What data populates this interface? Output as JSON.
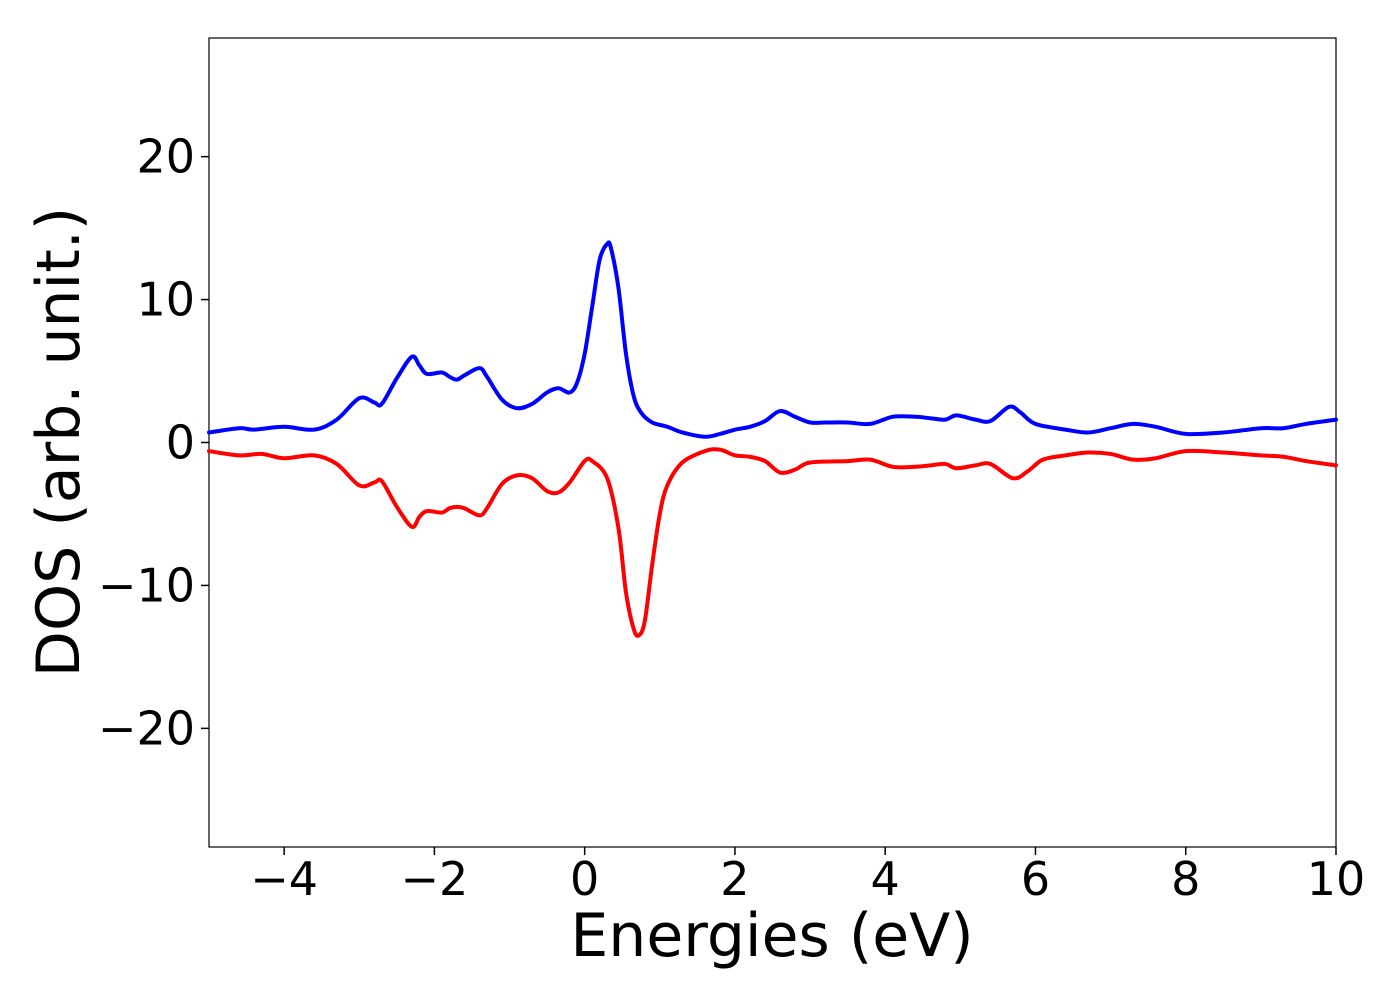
{
  "chart_data": {
    "type": "line",
    "title": "",
    "xlabel": "Energies (eV)",
    "ylabel": "DOS (arb. unit.)",
    "xlim": [
      -5,
      10
    ],
    "ylim": [
      -28.3,
      28.3
    ],
    "xticks": [
      -4,
      -2,
      0,
      2,
      4,
      6,
      8,
      10
    ],
    "xtick_labels": [
      "−4",
      "−2",
      "0",
      "2",
      "4",
      "6",
      "8",
      "10"
    ],
    "yticks": [
      20,
      10,
      0,
      -10,
      -20
    ],
    "ytick_labels": [
      "20",
      "10",
      "0",
      "−10",
      "−20"
    ],
    "grid": false,
    "legend": "none",
    "series": [
      {
        "color": "#0000ff",
        "x": [
          -5.0,
          -4.6,
          -4.4,
          -4.0,
          -3.6,
          -3.3,
          -3.0,
          -2.8,
          -2.7,
          -2.5,
          -2.3,
          -2.2,
          -2.1,
          -1.9,
          -1.8,
          -1.7,
          -1.6,
          -1.4,
          -1.3,
          -1.1,
          -0.9,
          -0.7,
          -0.5,
          -0.35,
          -0.2,
          -0.1,
          0.0,
          0.1,
          0.2,
          0.3,
          0.35,
          0.45,
          0.55,
          0.65,
          0.75,
          0.9,
          1.1,
          1.3,
          1.6,
          1.8,
          2.0,
          2.2,
          2.4,
          2.6,
          2.8,
          3.0,
          3.2,
          3.5,
          3.8,
          4.1,
          4.4,
          4.6,
          4.8,
          4.95,
          5.2,
          5.4,
          5.65,
          5.8,
          6.0,
          6.4,
          6.7,
          7.0,
          7.3,
          7.6,
          8.0,
          8.5,
          9.0,
          9.3,
          9.6,
          10.0
        ],
        "values": [
          0.7,
          1.0,
          0.9,
          1.1,
          0.9,
          1.6,
          3.1,
          2.8,
          2.7,
          4.5,
          6.0,
          5.4,
          4.8,
          4.9,
          4.6,
          4.4,
          4.7,
          5.2,
          4.6,
          3.0,
          2.4,
          2.7,
          3.5,
          3.8,
          3.5,
          4.2,
          6.2,
          9.5,
          12.8,
          13.9,
          13.6,
          10.8,
          6.2,
          3.3,
          2.1,
          1.4,
          1.1,
          0.7,
          0.4,
          0.6,
          0.9,
          1.1,
          1.5,
          2.2,
          1.8,
          1.4,
          1.4,
          1.4,
          1.3,
          1.8,
          1.8,
          1.7,
          1.6,
          1.9,
          1.6,
          1.5,
          2.5,
          2.1,
          1.3,
          0.9,
          0.7,
          1.0,
          1.3,
          1.1,
          0.6,
          0.7,
          1.0,
          1.0,
          1.3,
          1.6
        ]
      },
      {
        "color": "#ff0000",
        "x": [
          -5.0,
          -4.6,
          -4.3,
          -4.0,
          -3.6,
          -3.3,
          -3.0,
          -2.8,
          -2.7,
          -2.5,
          -2.3,
          -2.2,
          -2.1,
          -1.9,
          -1.8,
          -1.7,
          -1.6,
          -1.4,
          -1.3,
          -1.1,
          -0.9,
          -0.7,
          -0.5,
          -0.35,
          -0.2,
          0.0,
          0.1,
          0.3,
          0.45,
          0.55,
          0.65,
          0.72,
          0.8,
          0.9,
          1.0,
          1.1,
          1.3,
          1.6,
          1.8,
          2.0,
          2.2,
          2.4,
          2.6,
          2.8,
          3.0,
          3.5,
          3.8,
          4.1,
          4.4,
          4.6,
          4.8,
          4.95,
          5.2,
          5.4,
          5.7,
          5.9,
          6.1,
          6.4,
          6.7,
          7.0,
          7.3,
          7.6,
          8.0,
          8.5,
          9.0,
          9.3,
          9.6,
          10.0
        ],
        "values": [
          -0.6,
          -0.9,
          -0.8,
          -1.1,
          -0.9,
          -1.5,
          -3.0,
          -2.8,
          -2.7,
          -4.5,
          -5.9,
          -5.2,
          -4.8,
          -4.9,
          -4.6,
          -4.5,
          -4.6,
          -5.1,
          -4.6,
          -2.9,
          -2.3,
          -2.5,
          -3.4,
          -3.5,
          -2.8,
          -1.3,
          -1.3,
          -2.5,
          -6.0,
          -10.5,
          -13.0,
          -13.5,
          -12.5,
          -8.5,
          -5.0,
          -3.0,
          -1.4,
          -0.6,
          -0.5,
          -0.9,
          -1.0,
          -1.3,
          -2.1,
          -1.9,
          -1.4,
          -1.3,
          -1.2,
          -1.7,
          -1.7,
          -1.6,
          -1.5,
          -1.8,
          -1.6,
          -1.5,
          -2.5,
          -2.0,
          -1.2,
          -0.9,
          -0.7,
          -0.8,
          -1.2,
          -1.1,
          -0.6,
          -0.7,
          -0.9,
          -1.0,
          -1.3,
          -1.6
        ]
      }
    ]
  }
}
